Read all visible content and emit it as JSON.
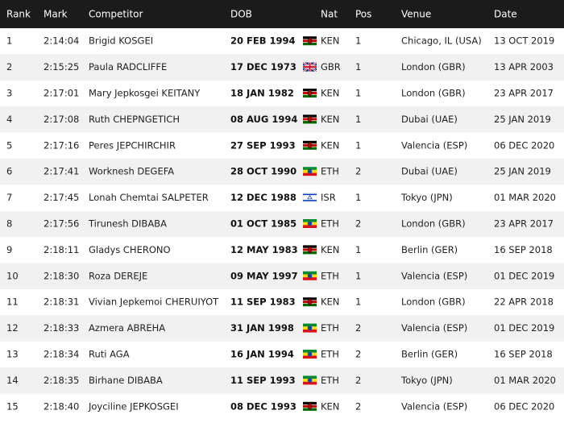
{
  "table": {
    "headers": [
      "Rank",
      "Mark",
      "Competitor",
      "DOB",
      "Nat",
      "Pos",
      "Venue",
      "Date"
    ],
    "rows": [
      [
        "1",
        "2:14:04",
        "Brigid KOSGEI",
        "20 FEB 1994",
        "KEN",
        "1",
        "Chicago, IL (USA)",
        "13 OCT 2019"
      ],
      [
        "2",
        "2:15:25",
        "Paula RADCLIFFE",
        "17 DEC 1973",
        "GBR",
        "1",
        "London (GBR)",
        "13 APR 2003"
      ],
      [
        "3",
        "2:17:01",
        "Mary Jepkosgei KEITANY",
        "18 JAN 1982",
        "KEN",
        "1",
        "London (GBR)",
        "23 APR 2017"
      ],
      [
        "4",
        "2:17:08",
        "Ruth CHEPNGETICH",
        "08 AUG 1994",
        "KEN",
        "1",
        "Dubai (UAE)",
        "25 JAN 2019"
      ],
      [
        "5",
        "2:17:16",
        "Peres JEPCHIRCHIR",
        "27 SEP 1993",
        "KEN",
        "1",
        "Valencia (ESP)",
        "06 DEC 2020"
      ],
      [
        "6",
        "2:17:41",
        "Worknesh DEGEFA",
        "28 OCT 1990",
        "ETH",
        "2",
        "Dubai (UAE)",
        "25 JAN 2019"
      ],
      [
        "7",
        "2:17:45",
        "Lonah Chemtai SALPETER",
        "12 DEC 1988",
        "ISR",
        "1",
        "Tokyo (JPN)",
        "01 MAR 2020"
      ],
      [
        "8",
        "2:17:56",
        "Tirunesh DIBABA",
        "01 OCT 1985",
        "ETH",
        "2",
        "London (GBR)",
        "23 APR 2017"
      ],
      [
        "9",
        "2:18:11",
        "Gladys CHERONO",
        "12 MAY 1983",
        "KEN",
        "1",
        "Berlin (GER)",
        "16 SEP 2018"
      ],
      [
        "10",
        "2:18:30",
        "Roza DEREJE",
        "09 MAY 1997",
        "ETH",
        "1",
        "Valencia (ESP)",
        "01 DEC 2019"
      ],
      [
        "11",
        "2:18:31",
        "Vivian Jepkemoi CHERUIYOT",
        "11 SEP 1983",
        "KEN",
        "1",
        "London (GBR)",
        "22 APR 2018"
      ],
      [
        "12",
        "2:18:33",
        "Azmera ABREHA",
        "31 JAN 1998",
        "ETH",
        "2",
        "Valencia (ESP)",
        "01 DEC 2019"
      ],
      [
        "13",
        "2:18:34",
        "Ruti AGA",
        "16 JAN 1994",
        "ETH",
        "2",
        "Berlin (GER)",
        "16 SEP 2018"
      ],
      [
        "14",
        "2:18:35",
        "Birhane DIBABA",
        "11 SEP 1993",
        "ETH",
        "2",
        "Tokyo (JPN)",
        "01 MAR 2020"
      ],
      [
        "15",
        "2:18:40",
        "Joyciline JEPKOSGEI",
        "08 DEC 1993",
        "KEN",
        "2",
        "Valencia (ESP)",
        "06 DEC 2020"
      ]
    ]
  }
}
